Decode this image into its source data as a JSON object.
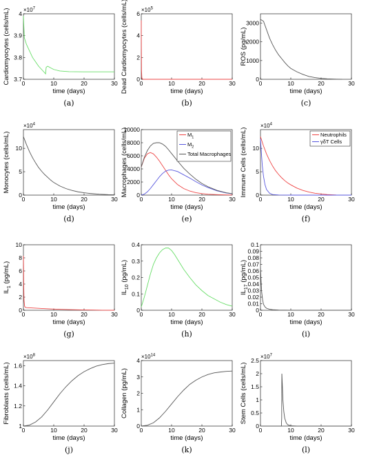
{
  "chart_data": [
    {
      "id": "a",
      "type": "line",
      "sublabel": "(a)",
      "xlabel": "time (days)",
      "ylabel": "Cardiomyocytes (cells/mL)",
      "exponent": "×10^7",
      "exp_base": "×10",
      "exp_power": "7",
      "xlim": [
        0,
        30
      ],
      "ylim": [
        3.7,
        4.0
      ],
      "xticks": [
        "0",
        "10",
        "20",
        "30"
      ],
      "xtick_values": [
        0,
        10,
        20,
        30
      ],
      "yticks": [
        "3.7",
        "3.8",
        "3.9",
        "4"
      ],
      "ytick_values": [
        3.7,
        3.8,
        3.9,
        4.0
      ],
      "series": [
        {
          "color": "#66dd66",
          "x": [
            0,
            0.3,
            1,
            2,
            3,
            4,
            5,
            6,
            7,
            7.3,
            7.5,
            8,
            9,
            10,
            12,
            15,
            20,
            25,
            30
          ],
          "y": [
            3.99,
            3.89,
            3.86,
            3.83,
            3.8,
            3.78,
            3.76,
            3.745,
            3.73,
            3.725,
            3.755,
            3.76,
            3.752,
            3.745,
            3.738,
            3.735,
            3.734,
            3.734,
            3.734
          ]
        }
      ]
    },
    {
      "id": "b",
      "type": "line",
      "sublabel": "(b)",
      "xlabel": "time (days)",
      "ylabel": "Dead Cardiomyocytes (cells/mL)",
      "exponent": "×10^5",
      "exp_base": "×10",
      "exp_power": "5",
      "xlim": [
        0,
        30
      ],
      "ylim": [
        0,
        6
      ],
      "xticks": [
        "0",
        "10",
        "20",
        "30"
      ],
      "xtick_values": [
        0,
        10,
        20,
        30
      ],
      "yticks": [
        "0",
        "2",
        "4",
        "6"
      ],
      "ytick_values": [
        0,
        2,
        4,
        6
      ],
      "series": [
        {
          "color": "#ee4444",
          "x": [
            0,
            0.03,
            0.08,
            0.2,
            0.5,
            1,
            5,
            10,
            20,
            30
          ],
          "y": [
            5.4,
            3.0,
            0.8,
            0.1,
            0.01,
            0,
            0,
            0,
            0,
            0
          ]
        }
      ]
    },
    {
      "id": "c",
      "type": "line",
      "sublabel": "(c)",
      "xlabel": "time (days)",
      "ylabel": "ROS (pg/mL)",
      "xlim": [
        0,
        30
      ],
      "ylim": [
        0,
        3500
      ],
      "xticks": [
        "0",
        "10",
        "20",
        "30"
      ],
      "xtick_values": [
        0,
        10,
        20,
        30
      ],
      "yticks": [
        "0",
        "1000",
        "2000",
        "3000"
      ],
      "ytick_values": [
        0,
        1000,
        2000,
        3000
      ],
      "series": [
        {
          "color": "#555555",
          "x": [
            0,
            0.5,
            1,
            2,
            3,
            4,
            5,
            6,
            7,
            8,
            9,
            10,
            12,
            14,
            16,
            18,
            20,
            22,
            25,
            27
          ],
          "y": [
            3200,
            3150,
            3100,
            2650,
            2200,
            1850,
            1550,
            1300,
            1100,
            900,
            720,
            580,
            400,
            260,
            150,
            90,
            50,
            25,
            8,
            0
          ]
        }
      ]
    },
    {
      "id": "d",
      "type": "line",
      "sublabel": "(d)",
      "xlabel": "time (days)",
      "ylabel": "Monocytes (cells/mL)",
      "exponent": "×10^4",
      "exp_base": "×10",
      "exp_power": "4",
      "xlim": [
        0,
        30
      ],
      "ylim": [
        0,
        14
      ],
      "xticks": [
        "0",
        "10",
        "20",
        "30"
      ],
      "xtick_values": [
        0,
        10,
        20,
        30
      ],
      "yticks": [
        "0",
        "5",
        "10"
      ],
      "ytick_values": [
        0,
        5,
        10
      ],
      "series": [
        {
          "color": "#555555",
          "x": [
            0,
            1,
            2,
            3,
            4,
            5,
            6,
            7,
            8,
            9,
            10,
            12,
            14,
            16,
            18,
            20,
            22,
            25,
            28,
            30
          ],
          "y": [
            12.5,
            10.8,
            9.3,
            8.0,
            6.9,
            5.9,
            5.1,
            4.4,
            3.8,
            3.2,
            2.7,
            1.95,
            1.4,
            1.0,
            0.7,
            0.5,
            0.35,
            0.2,
            0.1,
            0.07
          ]
        }
      ]
    },
    {
      "id": "e",
      "type": "line",
      "sublabel": "(e)",
      "xlabel": "time (days)",
      "ylabel": "Macrophages (cells/mL)",
      "xlim": [
        0,
        30
      ],
      "ylim": [
        0,
        10000
      ],
      "xticks": [
        "0",
        "10",
        "20",
        "30"
      ],
      "xtick_values": [
        0,
        10,
        20,
        30
      ],
      "yticks": [
        "0",
        "2000",
        "4000",
        "6000",
        "8000",
        "10000"
      ],
      "ytick_values": [
        0,
        2000,
        4000,
        6000,
        8000,
        10000
      ],
      "legend": {
        "placement": "top-right"
      },
      "series": [
        {
          "name": "M",
          "sub": "1",
          "color": "#ee4444",
          "x": [
            0,
            1,
            2,
            3,
            4,
            5,
            6,
            7,
            8,
            9,
            10,
            12,
            14,
            16,
            18,
            20,
            22,
            25,
            28,
            30
          ],
          "y": [
            4300,
            5600,
            6300,
            6500,
            6300,
            5800,
            5200,
            4500,
            3800,
            3100,
            2500,
            1600,
            1000,
            620,
            380,
            230,
            140,
            70,
            30,
            15
          ]
        },
        {
          "name": "M",
          "sub": "2",
          "color": "#5555dd",
          "x": [
            0,
            1,
            2,
            3,
            4,
            5,
            6,
            7,
            8,
            9,
            10,
            12,
            14,
            16,
            18,
            20,
            22,
            25,
            28,
            30
          ],
          "y": [
            0,
            150,
            500,
            1000,
            1600,
            2200,
            2800,
            3300,
            3650,
            3820,
            3850,
            3600,
            3100,
            2600,
            2050,
            1550,
            1150,
            650,
            330,
            200
          ]
        },
        {
          "name": "Total Macrophages",
          "color": "#555555",
          "x": [
            0,
            1,
            2,
            3,
            4,
            5,
            6,
            7,
            8,
            9,
            10,
            12,
            14,
            16,
            18,
            20,
            22,
            25,
            28,
            30
          ],
          "y": [
            4300,
            5750,
            6800,
            7500,
            7900,
            8000,
            8000,
            7800,
            7450,
            6920,
            6350,
            5200,
            4100,
            3220,
            2430,
            1780,
            1290,
            720,
            360,
            215
          ]
        }
      ]
    },
    {
      "id": "f",
      "type": "line",
      "sublabel": "(f)",
      "xlabel": "time (days)",
      "ylabel": "Immune Cells (cells/mL)",
      "exponent": "×10^4",
      "exp_base": "×10",
      "exp_power": "4",
      "xlim": [
        0,
        30
      ],
      "ylim": [
        0,
        14
      ],
      "xticks": [
        "0",
        "10",
        "20",
        "30"
      ],
      "xtick_values": [
        0,
        10,
        20,
        30
      ],
      "yticks": [
        "0",
        "5",
        "10"
      ],
      "ytick_values": [
        0,
        5,
        10
      ],
      "legend": {
        "placement": "top-right"
      },
      "series": [
        {
          "name": "Neutrophils",
          "color": "#ee4444",
          "x": [
            0,
            0.5,
            1,
            2,
            3,
            4,
            5,
            6,
            7,
            8,
            9,
            10,
            12,
            14,
            16,
            18,
            20,
            22,
            25
          ],
          "y": [
            12.5,
            11.5,
            10.5,
            8.8,
            7.4,
            6.2,
            5.2,
            4.4,
            3.7,
            3.1,
            2.6,
            2.2,
            1.5,
            1.0,
            0.65,
            0.4,
            0.25,
            0.12,
            0.03
          ]
        },
        {
          "name": "γδT Cells",
          "color": "#5555dd",
          "x": [
            0,
            0.3,
            0.6,
            1,
            1.5,
            2,
            3,
            4,
            6,
            10,
            30
          ],
          "y": [
            12.0,
            9.0,
            6.3,
            4.0,
            2.2,
            1.2,
            0.4,
            0.12,
            0.02,
            0,
            0
          ]
        }
      ]
    },
    {
      "id": "g",
      "type": "line",
      "sublabel": "(g)",
      "xlabel": "time (days)",
      "ylabel": "IL",
      "ylabel_sub": "1",
      "ylabel_unit": " (pg/mL)",
      "xlim": [
        0,
        30
      ],
      "ylim": [
        0,
        10
      ],
      "xticks": [
        "0",
        "10",
        "20",
        "30"
      ],
      "xtick_values": [
        0,
        10,
        20,
        30
      ],
      "yticks": [
        "0",
        "2",
        "4",
        "6",
        "8",
        "10"
      ],
      "ytick_values": [
        0,
        2,
        4,
        6,
        8,
        10
      ],
      "series": [
        {
          "color": "#ee4444",
          "x": [
            0,
            0.05,
            0.1,
            0.2,
            0.4,
            0.6,
            1,
            2,
            4,
            6,
            10,
            15,
            20,
            23,
            26,
            30
          ],
          "y": [
            8.3,
            6.5,
            3.8,
            1.5,
            0.6,
            0.45,
            0.4,
            0.38,
            0.32,
            0.27,
            0.18,
            0.1,
            0.05,
            0.03,
            0.01,
            0
          ]
        }
      ]
    },
    {
      "id": "h",
      "type": "line",
      "sublabel": "(h)",
      "xlabel": "time (days)",
      "ylabel": "IL",
      "ylabel_sub": "10",
      "ylabel_unit": " (pg/mL)",
      "xlim": [
        0,
        30
      ],
      "ylim": [
        0,
        0.4
      ],
      "xticks": [
        "0",
        "10",
        "20",
        "30"
      ],
      "xtick_values": [
        0,
        10,
        20,
        30
      ],
      "yticks": [
        "0",
        "0.1",
        "0.2",
        "0.3",
        "0.4"
      ],
      "ytick_values": [
        0,
        0.1,
        0.2,
        0.3,
        0.4
      ],
      "series": [
        {
          "color": "#66dd66",
          "x": [
            0,
            1,
            2,
            3,
            4,
            5,
            6,
            7,
            8,
            9,
            10,
            11,
            12,
            14,
            16,
            18,
            20,
            22,
            24,
            26,
            28,
            30
          ],
          "y": [
            0.02,
            0.08,
            0.15,
            0.22,
            0.28,
            0.32,
            0.35,
            0.37,
            0.38,
            0.38,
            0.365,
            0.34,
            0.31,
            0.25,
            0.2,
            0.155,
            0.12,
            0.09,
            0.07,
            0.05,
            0.035,
            0.025
          ]
        }
      ]
    },
    {
      "id": "i",
      "type": "line",
      "sublabel": "(i)",
      "xlabel": "time (days)",
      "ylabel": "IL",
      "ylabel_sub": "17",
      "ylabel_unit": " (pg/mL)",
      "xlim": [
        0,
        30
      ],
      "ylim": [
        0,
        0.1
      ],
      "xticks": [
        "0",
        "10",
        "20",
        "30"
      ],
      "xtick_values": [
        0,
        10,
        20,
        30
      ],
      "yticks": [
        "0",
        "0.01",
        "0.02",
        "0.03",
        "0.04",
        "0.05",
        "0.06",
        "0.07",
        "0.08",
        "0.09",
        "0.1"
      ],
      "ytick_values": [
        0,
        0.01,
        0.02,
        0.03,
        0.04,
        0.05,
        0.06,
        0.07,
        0.08,
        0.09,
        0.1
      ],
      "series": [
        {
          "color": "#555555",
          "x": [
            0,
            0.2,
            0.4,
            0.7,
            1,
            1.5,
            2,
            3,
            4,
            6,
            10,
            20,
            30
          ],
          "y": [
            0.065,
            0.045,
            0.028,
            0.016,
            0.009,
            0.005,
            0.003,
            0.0015,
            0.0008,
            0.0003,
            0,
            0,
            0
          ]
        }
      ]
    },
    {
      "id": "j",
      "type": "line",
      "sublabel": "(j)",
      "xlabel": "time (days)",
      "ylabel": "Fibroblasts (cells/mL)",
      "exponent": "×10^8",
      "exp_base": "×10",
      "exp_power": "8",
      "xlim": [
        0,
        30
      ],
      "ylim": [
        1.0,
        1.65
      ],
      "xticks": [
        "0",
        "10",
        "20",
        "30"
      ],
      "xtick_values": [
        0,
        10,
        20,
        30
      ],
      "yticks": [
        "1",
        "1.2",
        "1.4",
        "1.6"
      ],
      "ytick_values": [
        1.0,
        1.2,
        1.4,
        1.6
      ],
      "series": [
        {
          "color": "#555555",
          "x": [
            0,
            2,
            4,
            6,
            8,
            10,
            12,
            14,
            16,
            18,
            20,
            22,
            24,
            26,
            28,
            30
          ],
          "y": [
            1.0,
            1.01,
            1.04,
            1.09,
            1.16,
            1.24,
            1.32,
            1.39,
            1.45,
            1.5,
            1.54,
            1.57,
            1.595,
            1.61,
            1.62,
            1.625
          ]
        }
      ]
    },
    {
      "id": "k",
      "type": "line",
      "sublabel": "(k)",
      "xlabel": "time (days)",
      "ylabel": "Collagen (pg/mL)",
      "exponent": "×10^14",
      "exp_base": "×10",
      "exp_power": "14",
      "xlim": [
        0,
        30
      ],
      "ylim": [
        0,
        4
      ],
      "xticks": [
        "0",
        "10",
        "20",
        "30"
      ],
      "xtick_values": [
        0,
        10,
        20,
        30
      ],
      "yticks": [
        "0",
        "1",
        "2",
        "3",
        "4"
      ],
      "ytick_values": [
        0,
        1,
        2,
        3,
        4
      ],
      "series": [
        {
          "color": "#555555",
          "x": [
            0,
            2,
            4,
            6,
            8,
            10,
            12,
            14,
            16,
            18,
            20,
            22,
            24,
            26,
            28,
            30
          ],
          "y": [
            0,
            0.05,
            0.2,
            0.5,
            0.9,
            1.35,
            1.8,
            2.2,
            2.55,
            2.8,
            3.0,
            3.15,
            3.25,
            3.3,
            3.34,
            3.36
          ]
        }
      ]
    },
    {
      "id": "l",
      "type": "line",
      "sublabel": "(l)",
      "xlabel": "time (days)",
      "ylabel": "Stem Cells (cells/mL)",
      "exponent": "×10^7",
      "exp_base": "×10",
      "exp_power": "7",
      "xlim": [
        0,
        30
      ],
      "ylim": [
        0,
        2.5
      ],
      "xticks": [
        "0",
        "10",
        "20",
        "30"
      ],
      "xtick_values": [
        0,
        10,
        20,
        30
      ],
      "yticks": [
        "0",
        "0.5",
        "1",
        "1.5",
        "2",
        "2.5"
      ],
      "ytick_values": [
        0,
        0.5,
        1,
        1.5,
        2,
        2.5
      ],
      "series": [
        {
          "color": "#555555",
          "x": [
            0,
            6.9,
            7.0,
            7.05,
            7.2,
            7.4,
            7.7,
            8.0,
            8.5,
            9,
            10,
            12,
            30
          ],
          "y": [
            0,
            0,
            0.3,
            2.0,
            1.6,
            1.0,
            0.55,
            0.3,
            0.12,
            0.05,
            0.01,
            0,
            0
          ]
        }
      ]
    }
  ]
}
